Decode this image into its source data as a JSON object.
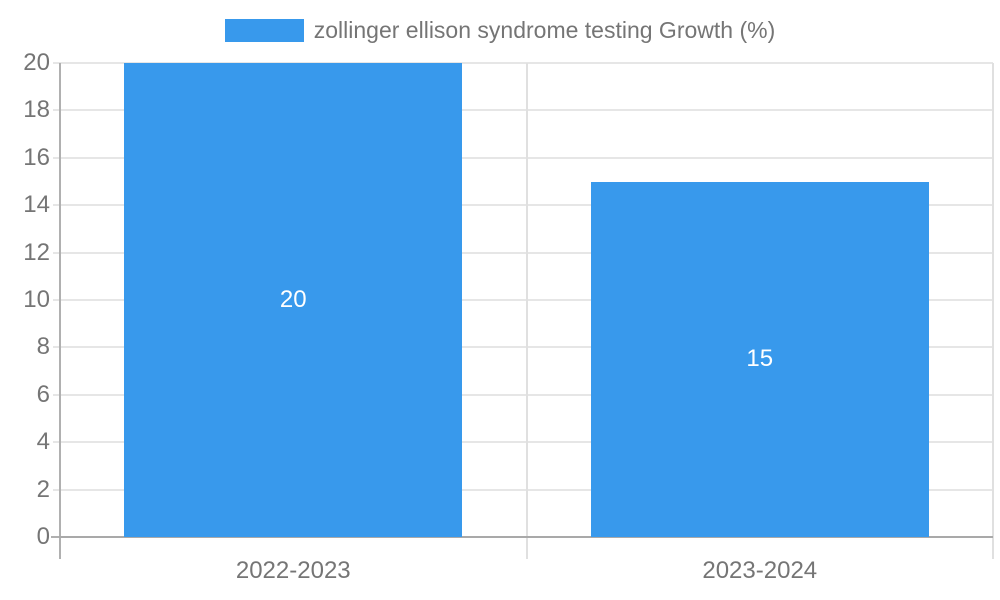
{
  "chart_data": {
    "type": "bar",
    "title": "",
    "legend": {
      "position": "top",
      "entries": [
        "zollinger ellison syndrome testing Growth (%)"
      ]
    },
    "categories": [
      "2022-2023",
      "2023-2024"
    ],
    "values": [
      20,
      15
    ],
    "data_labels": [
      "20",
      "15"
    ],
    "xlabel": "",
    "ylabel": "",
    "ylim": [
      0,
      20
    ],
    "yticks": [
      0,
      2,
      4,
      6,
      8,
      10,
      12,
      14,
      16,
      18,
      20
    ],
    "grid": true,
    "colors": {
      "bar": "#3899EC",
      "axis_text": "#757575",
      "data_label_text": "#ffffff",
      "gridline": "#e6e6e6",
      "axis_line": "#a9a9a9"
    }
  }
}
